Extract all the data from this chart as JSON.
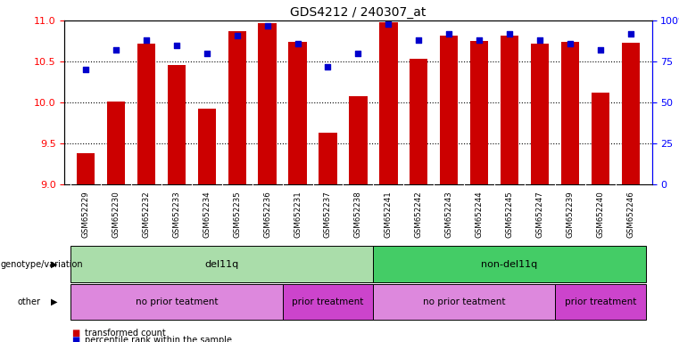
{
  "title": "GDS4212 / 240307_at",
  "samples": [
    "GSM652229",
    "GSM652230",
    "GSM652232",
    "GSM652233",
    "GSM652234",
    "GSM652235",
    "GSM652236",
    "GSM652231",
    "GSM652237",
    "GSM652238",
    "GSM652241",
    "GSM652242",
    "GSM652243",
    "GSM652244",
    "GSM652245",
    "GSM652247",
    "GSM652239",
    "GSM652240",
    "GSM652246"
  ],
  "transformed_count": [
    9.38,
    10.01,
    10.72,
    10.46,
    9.93,
    10.87,
    10.97,
    10.74,
    9.63,
    10.08,
    10.98,
    10.53,
    10.82,
    10.75,
    10.82,
    10.72,
    10.74,
    10.12,
    10.73
  ],
  "percentile_rank": [
    70,
    82,
    88,
    85,
    80,
    91,
    97,
    86,
    72,
    80,
    98,
    88,
    92,
    88,
    92,
    88,
    86,
    82,
    92
  ],
  "ylim_left": [
    9.0,
    11.0
  ],
  "ylim_right": [
    0,
    100
  ],
  "bar_color": "#cc0000",
  "dot_color": "#0000cc",
  "yticks_left": [
    9.0,
    9.5,
    10.0,
    10.5,
    11.0
  ],
  "yticks_right": [
    0,
    25,
    50,
    75,
    100
  ],
  "genotype_groups": [
    {
      "label": "del11q",
      "start": 0,
      "end": 10,
      "color": "#aaddaa"
    },
    {
      "label": "non-del11q",
      "start": 10,
      "end": 19,
      "color": "#44cc66"
    }
  ],
  "other_groups": [
    {
      "label": "no prior teatment",
      "start": 0,
      "end": 7,
      "color": "#dd88dd"
    },
    {
      "label": "prior treatment",
      "start": 7,
      "end": 10,
      "color": "#cc44cc"
    },
    {
      "label": "no prior teatment",
      "start": 10,
      "end": 16,
      "color": "#dd88dd"
    },
    {
      "label": "prior treatment",
      "start": 16,
      "end": 19,
      "color": "#cc44cc"
    }
  ],
  "legend_items": [
    {
      "label": "transformed count",
      "color": "#cc0000"
    },
    {
      "label": "percentile rank within the sample",
      "color": "#0000cc"
    }
  ],
  "xtick_bg": "#cccccc",
  "bar_width": 0.6
}
